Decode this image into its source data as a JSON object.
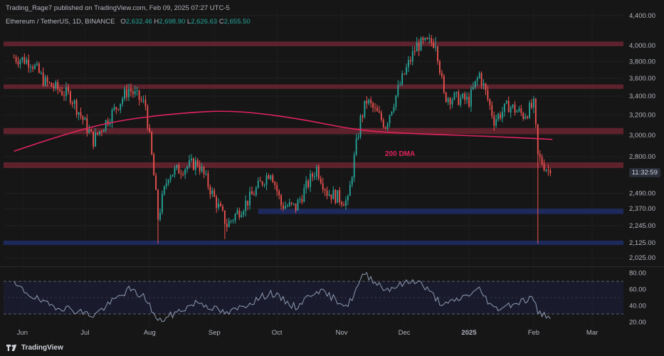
{
  "header": {
    "publish_info": "Trading_Rage7 published on TradingView.com, Feb 09, 2025 07:27 UTC-5",
    "symbol": "Ethereum / TetherUS, 1D, BINANCE",
    "ohlc": [
      {
        "key": "O",
        "value": "2,632.46"
      },
      {
        "key": "H",
        "value": "2,698.90"
      },
      {
        "key": "L",
        "value": "2,626.63"
      },
      {
        "key": "C",
        "value": "2,655.50"
      }
    ]
  },
  "footer": {
    "brand": "TradingView"
  },
  "countdown": "11:32:59",
  "colors": {
    "background": "#161616",
    "up": "#26a69a",
    "down": "#ef5350",
    "resistance_zone": "#6b2530",
    "support_zone": "#1e2a5e",
    "dma": "#e0245e",
    "rsi_line": "#8f9bb3",
    "rsi_band": "#1d2040"
  },
  "chart_data": [
    {
      "type": "candlestick",
      "symbol": "ETHUSDT",
      "timeframe": "1D",
      "x_tick_labels": [
        "Jun",
        "Jul",
        "Aug",
        "Sep",
        "Oct",
        "Nov",
        "Dec",
        "2025",
        "Feb",
        "Mar"
      ],
      "y_tick_labels": [
        "4,400.00",
        "4,000.00",
        "3,800.00",
        "3,600.00",
        "3,400.00",
        "3,200.00",
        "3,000.00",
        "2,800.00",
        "2,490.00",
        "2,370.00",
        "2,245.00",
        "2,125.00",
        "2,025.00"
      ],
      "y_axis_scale": "log",
      "ylim": [
        2000,
        4450
      ],
      "annotation": "200 DMA",
      "resistance_zones": [
        [
          3990,
          4050
        ],
        [
          3480,
          3530
        ],
        [
          3010,
          3070
        ],
        [
          2700,
          2750
        ]
      ],
      "support_zones": [
        [
          2330,
          2370
        ],
        [
          2110,
          2140
        ]
      ],
      "path_points": [
        {
          "date": "2024-05-28",
          "price": 3850
        },
        {
          "date": "2024-06-05",
          "price": 3800
        },
        {
          "date": "2024-06-12",
          "price": 3550
        },
        {
          "date": "2024-06-24",
          "price": 3400
        },
        {
          "date": "2024-07-05",
          "price": 2950
        },
        {
          "date": "2024-07-15",
          "price": 3250
        },
        {
          "date": "2024-07-22",
          "price": 3480
        },
        {
          "date": "2024-07-30",
          "price": 3300
        },
        {
          "date": "2024-08-05",
          "price": 2300
        },
        {
          "date": "2024-08-10",
          "price": 2650
        },
        {
          "date": "2024-08-24",
          "price": 2750
        },
        {
          "date": "2024-09-01",
          "price": 2450
        },
        {
          "date": "2024-09-07",
          "price": 2250
        },
        {
          "date": "2024-09-18",
          "price": 2450
        },
        {
          "date": "2024-09-28",
          "price": 2680
        },
        {
          "date": "2024-10-03",
          "price": 2400
        },
        {
          "date": "2024-10-10",
          "price": 2380
        },
        {
          "date": "2024-10-20",
          "price": 2700
        },
        {
          "date": "2024-10-25",
          "price": 2500
        },
        {
          "date": "2024-11-04",
          "price": 2420
        },
        {
          "date": "2024-11-10",
          "price": 3150
        },
        {
          "date": "2024-11-13",
          "price": 3350
        },
        {
          "date": "2024-11-22",
          "price": 3100
        },
        {
          "date": "2024-12-01",
          "price": 3650
        },
        {
          "date": "2024-12-07",
          "price": 4000
        },
        {
          "date": "2024-12-16",
          "price": 4050
        },
        {
          "date": "2024-12-20",
          "price": 3400
        },
        {
          "date": "2025-01-01",
          "price": 3350
        },
        {
          "date": "2025-01-06",
          "price": 3650
        },
        {
          "date": "2025-01-13",
          "price": 3150
        },
        {
          "date": "2025-01-20",
          "price": 3300
        },
        {
          "date": "2025-01-27",
          "price": 3200
        },
        {
          "date": "2025-02-01",
          "price": 3300
        },
        {
          "date": "2025-02-03",
          "price": 2800
        },
        {
          "date": "2025-02-09",
          "price": 2655.5
        }
      ],
      "wick_extremes": [
        {
          "date": "2024-08-05",
          "low": 2120
        },
        {
          "date": "2024-09-06",
          "low": 2150
        },
        {
          "date": "2024-12-16",
          "high": 4110
        },
        {
          "date": "2025-02-03",
          "low": 2120
        }
      ],
      "dma_200": [
        {
          "date": "2024-05-28",
          "value": 2850
        },
        {
          "date": "2024-06-20",
          "value": 3000
        },
        {
          "date": "2024-07-15",
          "value": 3140
        },
        {
          "date": "2024-08-15",
          "value": 3220
        },
        {
          "date": "2024-09-10",
          "value": 3250
        },
        {
          "date": "2024-10-10",
          "value": 3170
        },
        {
          "date": "2024-11-10",
          "value": 3040
        },
        {
          "date": "2024-12-10",
          "value": 3010
        },
        {
          "date": "2025-01-10",
          "value": 2990
        },
        {
          "date": "2025-02-10",
          "value": 2960
        }
      ]
    },
    {
      "type": "line",
      "name": "RSI",
      "y_tick_labels": [
        "80.00",
        "60.00",
        "40.00",
        "20.00"
      ],
      "ylim": [
        15,
        85
      ],
      "band": [
        30,
        70
      ],
      "points": [
        {
          "date": "2024-05-28",
          "value": 66
        },
        {
          "date": "2024-06-12",
          "value": 42
        },
        {
          "date": "2024-06-24",
          "value": 36
        },
        {
          "date": "2024-07-05",
          "value": 28
        },
        {
          "date": "2024-07-22",
          "value": 60
        },
        {
          "date": "2024-07-30",
          "value": 50
        },
        {
          "date": "2024-08-05",
          "value": 20
        },
        {
          "date": "2024-08-24",
          "value": 45
        },
        {
          "date": "2024-09-07",
          "value": 30
        },
        {
          "date": "2024-09-28",
          "value": 56
        },
        {
          "date": "2024-10-10",
          "value": 38
        },
        {
          "date": "2024-10-20",
          "value": 60
        },
        {
          "date": "2024-11-04",
          "value": 40
        },
        {
          "date": "2024-11-12",
          "value": 80
        },
        {
          "date": "2024-11-22",
          "value": 60
        },
        {
          "date": "2024-12-07",
          "value": 72
        },
        {
          "date": "2024-12-20",
          "value": 40
        },
        {
          "date": "2025-01-06",
          "value": 60
        },
        {
          "date": "2025-01-13",
          "value": 36
        },
        {
          "date": "2025-02-01",
          "value": 50
        },
        {
          "date": "2025-02-03",
          "value": 30
        },
        {
          "date": "2025-02-09",
          "value": 28
        }
      ]
    }
  ]
}
